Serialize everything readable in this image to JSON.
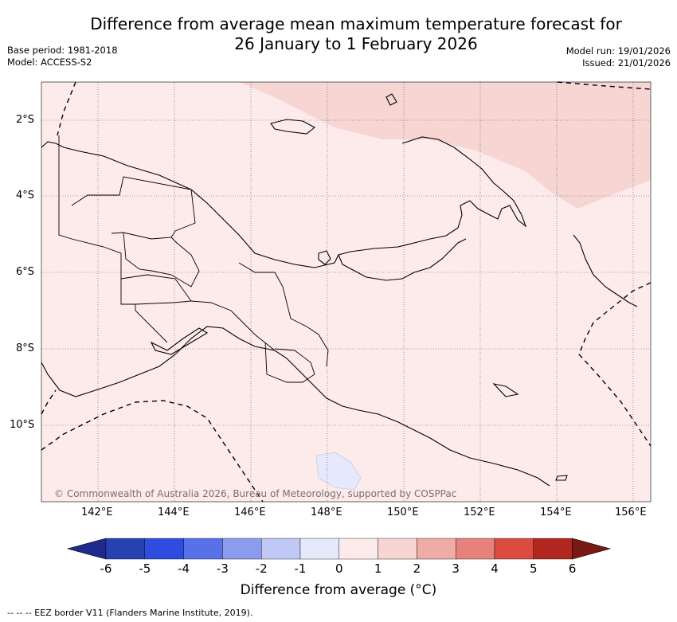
{
  "title_line1": "Difference from average mean maximum temperature forecast for",
  "title_line2": "26 January to 1 February 2026",
  "base_period": "Base period: 1981-2018",
  "model": "Model: ACCESS-S2",
  "model_run": "Model run: 19/01/2026",
  "issued": "Issued: 21/01/2026",
  "copyright": "© Commonwealth of Australia 2026, Bureau of Meteorology, supported by COSPPac",
  "lat_labels": [
    "2°S",
    "4°S",
    "6°S",
    "8°S",
    "10°S"
  ],
  "lon_labels": [
    "142°E",
    "144°E",
    "146°E",
    "148°E",
    "150°E",
    "152°E",
    "154°E",
    "156°E"
  ],
  "colorbar": {
    "title": "Difference from average (°C)",
    "ticks": [
      "-6",
      "-5",
      "-4",
      "-3",
      "-2",
      "-1",
      "0",
      "1",
      "2",
      "3",
      "4",
      "5",
      "6"
    ],
    "colors": [
      "#1f2a8c",
      "#2541b2",
      "#2e4de0",
      "#5870e8",
      "#8a9cee",
      "#c0c8f5",
      "#e6e9fb",
      "#fcebea",
      "#f6d5d3",
      "#efaba6",
      "#e5827c",
      "#db4b40",
      "#b0271f",
      "#7a1a14"
    ]
  },
  "footer": "--  --  -- EEZ border V11 (Flanders Marine Institute, 2019).",
  "colors": {
    "land_anomaly": "#fcebea",
    "warm_region": "#f6d5d3",
    "cool_patch": "#e6e9fb"
  }
}
